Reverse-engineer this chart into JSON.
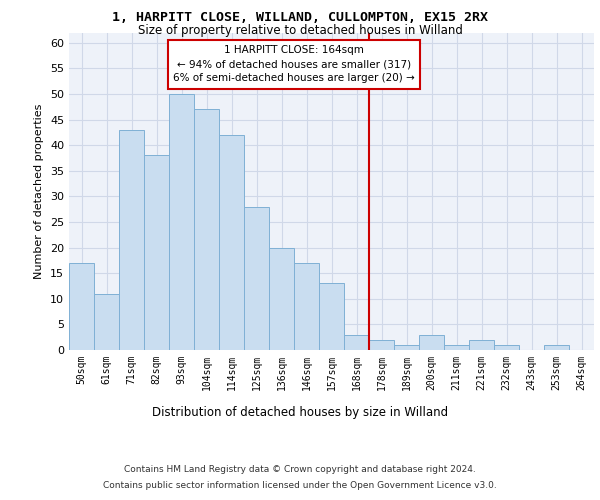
{
  "title_line1": "1, HARPITT CLOSE, WILLAND, CULLOMPTON, EX15 2RX",
  "title_line2": "Size of property relative to detached houses in Willand",
  "xlabel": "Distribution of detached houses by size in Willand",
  "ylabel": "Number of detached properties",
  "categories": [
    "50sqm",
    "61sqm",
    "71sqm",
    "82sqm",
    "93sqm",
    "104sqm",
    "114sqm",
    "125sqm",
    "136sqm",
    "146sqm",
    "157sqm",
    "168sqm",
    "178sqm",
    "189sqm",
    "200sqm",
    "211sqm",
    "221sqm",
    "232sqm",
    "243sqm",
    "253sqm",
    "264sqm"
  ],
  "values": [
    17,
    11,
    43,
    38,
    50,
    47,
    42,
    28,
    20,
    17,
    13,
    3,
    2,
    1,
    3,
    1,
    2,
    1,
    0,
    1,
    0
  ],
  "bar_color": "#c9ddf0",
  "bar_edge_color": "#7fb0d5",
  "grid_color": "#d0d8e8",
  "background_color": "#eef2f9",
  "vline_x_index": 11.5,
  "vline_color": "#cc0000",
  "annotation_text": "1 HARPITT CLOSE: 164sqm\n← 94% of detached houses are smaller (317)\n6% of semi-detached houses are larger (20) →",
  "annotation_box_color": "#cc0000",
  "ylim": [
    0,
    62
  ],
  "yticks": [
    0,
    5,
    10,
    15,
    20,
    25,
    30,
    35,
    40,
    45,
    50,
    55,
    60
  ],
  "footer_line1": "Contains HM Land Registry data © Crown copyright and database right 2024.",
  "footer_line2": "Contains public sector information licensed under the Open Government Licence v3.0."
}
